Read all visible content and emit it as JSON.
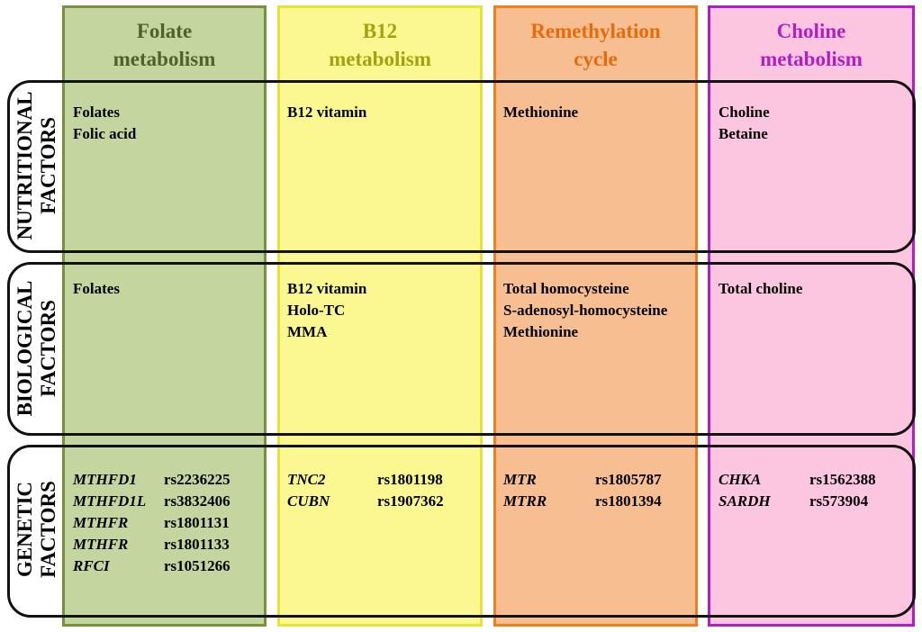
{
  "columns": [
    {
      "key": "folate",
      "title": "Folate\nmetabolism",
      "bg": "#c5d59f",
      "border": "#76923c",
      "title_color": "#4f6228"
    },
    {
      "key": "b12",
      "title": "B12\nmetabolism",
      "bg": "#fbf891",
      "border": "#e6e23a",
      "title_color": "#a4a20e"
    },
    {
      "key": "remethylation",
      "title": "Remethylation\ncycle",
      "bg": "#f7be91",
      "border": "#f07f19",
      "title_color": "#e46c0a"
    },
    {
      "key": "choline",
      "title": "Choline\nmetabolism",
      "bg": "#fdc6e0",
      "border": "#b31fbf",
      "title_color": "#b31fbf"
    }
  ],
  "rows": [
    {
      "key": "nutritional",
      "label": "NUTRITIONAL\nFACTORS"
    },
    {
      "key": "biological",
      "label": "BIOLOGICAL\nFACTORS"
    },
    {
      "key": "genetic",
      "label": "GENETIC\nFACTORS"
    }
  ],
  "cells": {
    "nutritional": {
      "folate": [
        "Folates",
        "Folic acid"
      ],
      "b12": [
        "B12 vitamin"
      ],
      "remethylation": [
        "Methionine"
      ],
      "choline": [
        "Choline",
        "Betaine"
      ]
    },
    "biological": {
      "folate": [
        "Folates"
      ],
      "b12": [
        "B12 vitamin",
        "Holo-TC",
        "MMA"
      ],
      "remethylation": [
        "Total homocysteine",
        "S-adenosyl-homocysteine",
        "Methionine"
      ],
      "choline": [
        "Total choline"
      ]
    },
    "genetic": {
      "folate": [
        {
          "gene": "MTHFD1",
          "rs": "rs2236225"
        },
        {
          "gene": "MTHFD1L",
          "rs": "rs3832406"
        },
        {
          "gene": "MTHFR",
          "rs": "rs1801131"
        },
        {
          "gene": "MTHFR",
          "rs": "rs1801133"
        },
        {
          "gene": "RFCI",
          "rs": "rs1051266"
        }
      ],
      "b12": [
        {
          "gene": "TNC2",
          "rs": "rs1801198"
        },
        {
          "gene": "CUBN",
          "rs": "rs1907362"
        }
      ],
      "remethylation": [
        {
          "gene": "MTR",
          "rs": "rs1805787"
        },
        {
          "gene": "MTRR",
          "rs": "rs1801394"
        }
      ],
      "choline": [
        {
          "gene": "CHKA",
          "rs": "rs1562388"
        },
        {
          "gene": "SARDH",
          "rs": "rs573904"
        }
      ]
    }
  }
}
